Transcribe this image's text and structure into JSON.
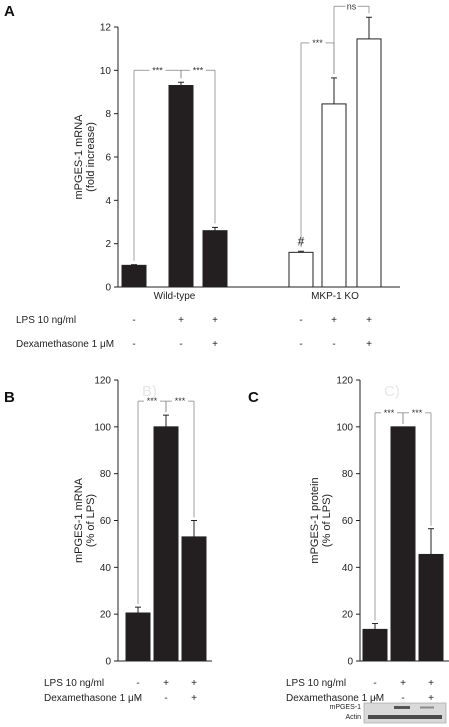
{
  "chart_data": [
    {
      "panel_letter": "A",
      "type": "bar",
      "ylabel": [
        "mPGES-1 mRNA",
        "(fold increase)"
      ],
      "ylim": [
        0,
        12
      ],
      "yticks": [
        0,
        2,
        4,
        6,
        8,
        10,
        12
      ],
      "groups": [
        {
          "label": "Wild-type",
          "fill": "#231f20",
          "values": [
            1.0,
            9.3,
            2.6
          ],
          "errors": [
            0.03,
            0.15,
            0.15
          ]
        },
        {
          "label": "MKP-1 KO",
          "fill": "#ffffff",
          "values": [
            1.6,
            8.45,
            11.45
          ],
          "errors": [
            0.05,
            1.2,
            1.0
          ]
        }
      ],
      "markers": [
        {
          "group": 1,
          "bar": 0,
          "text": "#"
        }
      ],
      "brackets": [
        {
          "group": 0,
          "from": 0,
          "to": 1,
          "text": "***"
        },
        {
          "group": 0,
          "from": 1,
          "to": 2,
          "text": "***"
        },
        {
          "group": 1,
          "from": 0,
          "to": 1,
          "text": "***"
        },
        {
          "group": 1,
          "from": 1,
          "to": 2,
          "text": "ns"
        }
      ],
      "conditions": [
        {
          "label": "LPS 10 ng/ml",
          "signs": [
            "-",
            "+",
            "+",
            "-",
            "+",
            "+"
          ]
        },
        {
          "label": "Dexamethasone 1 μM",
          "signs": [
            "-",
            "-",
            "+",
            "-",
            "-",
            "+"
          ]
        }
      ]
    },
    {
      "panel_letter": "B",
      "watermark": "B)",
      "type": "bar",
      "ylabel": [
        "mPGES-1 mRNA",
        "(% of LPS)"
      ],
      "ylim": [
        0,
        120
      ],
      "yticks": [
        0,
        20,
        40,
        60,
        80,
        100,
        120
      ],
      "fill": "#231f20",
      "values": [
        20.5,
        100,
        53
      ],
      "errors": [
        2.5,
        5,
        7
      ],
      "brackets": [
        {
          "from": 0,
          "to": 1,
          "text": "***"
        },
        {
          "from": 1,
          "to": 2,
          "text": "***"
        }
      ],
      "conditions": [
        {
          "label": "LPS 10 ng/ml",
          "signs": [
            "-",
            "+",
            "+"
          ]
        },
        {
          "label": "Dexamethasone 1 μM",
          "signs": [
            "-",
            "-",
            "+"
          ]
        }
      ]
    },
    {
      "panel_letter": "C",
      "watermark": "C)",
      "type": "bar",
      "ylabel": [
        "mPGES-1 protein",
        "(% of LPS)"
      ],
      "ylim": [
        0,
        120
      ],
      "yticks": [
        0,
        20,
        40,
        60,
        80,
        100,
        120
      ],
      "fill": "#231f20",
      "values": [
        13.5,
        100,
        45.5
      ],
      "errors": [
        2.5,
        0,
        11
      ],
      "brackets": [
        {
          "from": 0,
          "to": 1,
          "text": "***"
        },
        {
          "from": 1,
          "to": 2,
          "text": "***"
        }
      ],
      "conditions": [
        {
          "label": "LPS 10 ng/ml",
          "signs": [
            "-",
            "+",
            "+"
          ]
        },
        {
          "label": "Dexamethasone 1 μM",
          "signs": [
            "-",
            "-",
            "+"
          ]
        }
      ],
      "blot": {
        "rows": [
          "mPGES-1",
          "Actin"
        ]
      }
    }
  ]
}
